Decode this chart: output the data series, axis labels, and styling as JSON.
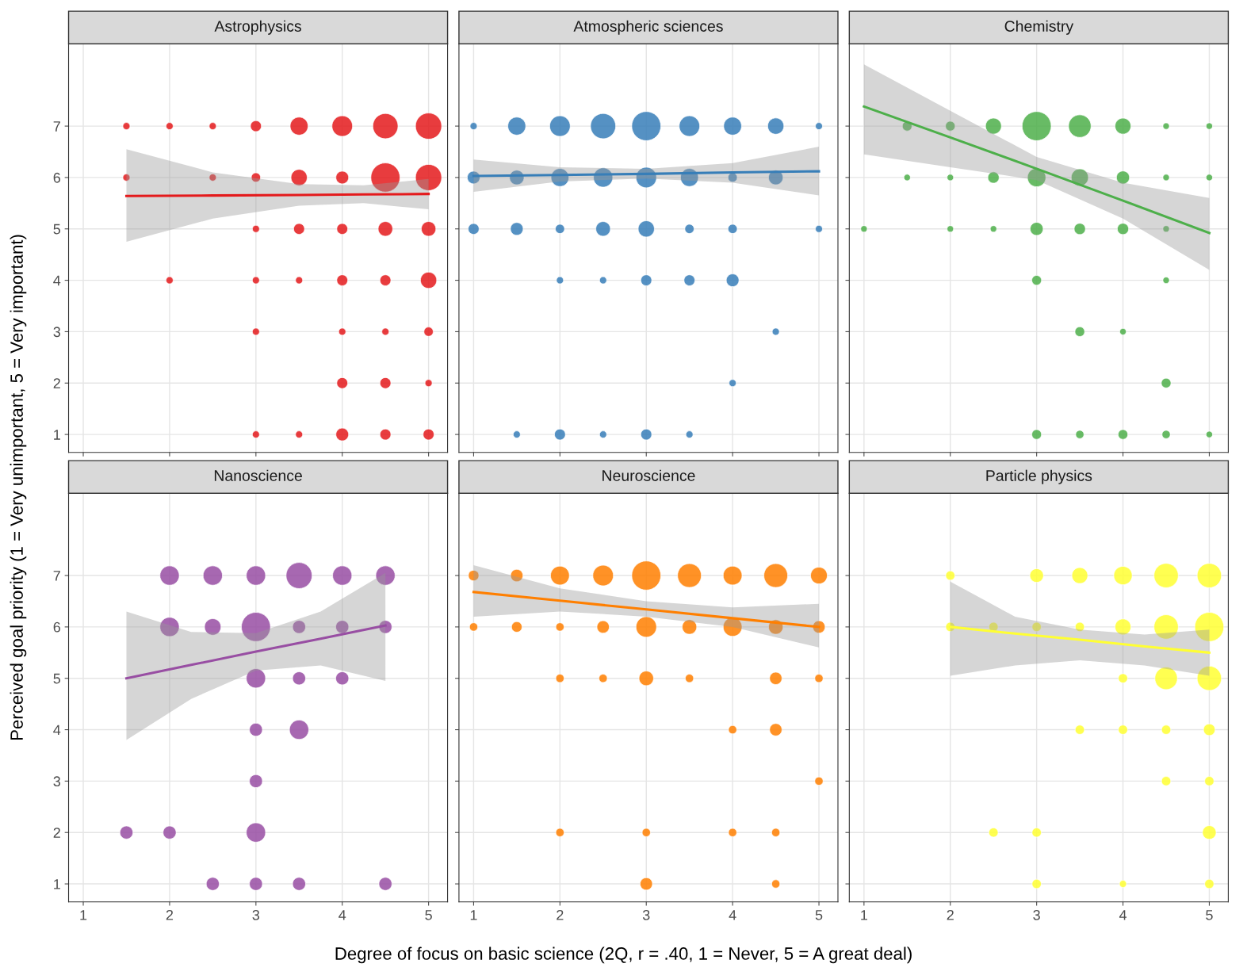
{
  "chart_data": [
    {
      "type": "bubble",
      "title": "Astrophysics",
      "ylabel": "Perceived goal priority (1 = Very unimportant, 5 = Very important)",
      "xlim": [
        0.83,
        5.22
      ],
      "ylim": [
        0.65,
        8.6
      ],
      "xticks": [
        1,
        2,
        3,
        4,
        5
      ],
      "yticks": [
        1,
        2,
        3,
        4,
        5,
        6,
        7
      ],
      "grid": true,
      "tick_labels": "y",
      "series": [
        {
          "type": "bubble",
          "color": "#e41a1c",
          "x": [
            1.5,
            2,
            2.5,
            3,
            3.5,
            4,
            4.5,
            5,
            1.5,
            2.5,
            3,
            3.5,
            4,
            4.5,
            5,
            3,
            3.5,
            4,
            4.5,
            5,
            2,
            3,
            3.5,
            4,
            4.5,
            5,
            3,
            4,
            4.5,
            5,
            4,
            4.5,
            5,
            3,
            3.5,
            4,
            4.5,
            5
          ],
          "values": [
            7,
            7,
            7,
            7,
            7,
            7,
            7,
            7,
            6,
            6,
            6,
            6,
            6,
            6,
            6,
            5,
            5,
            5,
            5,
            5,
            4,
            4,
            4,
            4,
            4,
            4,
            3,
            3,
            3,
            3,
            2,
            2,
            2,
            1,
            1,
            1,
            1,
            1
          ],
          "sizes": [
            0.06,
            0.06,
            0.06,
            0.14,
            0.38,
            0.5,
            0.75,
            0.81,
            0.06,
            0.06,
            0.1,
            0.31,
            0.19,
            1,
            0.81,
            0.06,
            0.14,
            0.14,
            0.25,
            0.25,
            0.06,
            0.06,
            0.06,
            0.14,
            0.14,
            0.31,
            0.06,
            0.06,
            0.06,
            0.1,
            0.14,
            0.14,
            0.06,
            0.06,
            0.06,
            0.19,
            0.14,
            0.14
          ]
        },
        {
          "type": "line",
          "color": "#e41a1c",
          "x": [
            1.5,
            2.5,
            3.5,
            4.25,
            5
          ],
          "values": [
            5.64,
            5.65,
            5.66,
            5.67,
            5.68
          ],
          "lower": [
            4.75,
            5.2,
            5.45,
            5.5,
            5.38
          ],
          "upper": [
            6.55,
            6.1,
            5.87,
            5.85,
            5.97
          ]
        }
      ]
    },
    {
      "type": "bubble",
      "title": "Atmospheric sciences",
      "xlim": [
        0.83,
        5.22
      ],
      "ylim": [
        0.65,
        8.6
      ],
      "xticks": [
        1,
        2,
        3,
        4,
        5
      ],
      "yticks": [
        1,
        2,
        3,
        4,
        5,
        6,
        7
      ],
      "grid": true,
      "tick_labels": false,
      "series": [
        {
          "type": "bubble",
          "color": "#377eb8",
          "x": [
            1,
            1.5,
            2,
            2.5,
            3,
            3.5,
            4,
            4.5,
            5,
            1,
            1.5,
            2,
            2.5,
            3,
            3.5,
            4,
            4.5,
            1,
            1.5,
            2,
            2.5,
            3,
            3.5,
            4,
            5,
            2,
            2.5,
            3,
            3.5,
            4,
            4.5,
            4,
            1.5,
            2,
            2.5,
            3,
            3.5
          ],
          "values": [
            7,
            7,
            7,
            7,
            7,
            7,
            7,
            7,
            7,
            6,
            6,
            6,
            6,
            6,
            6,
            6,
            6,
            5,
            5,
            5,
            5,
            5,
            5,
            5,
            5,
            4,
            4,
            4,
            4,
            4,
            3,
            2,
            1,
            1,
            1,
            1,
            1
          ],
          "sizes": [
            0.06,
            0.38,
            0.5,
            0.75,
            1,
            0.5,
            0.38,
            0.31,
            0.06,
            0.19,
            0.25,
            0.38,
            0.44,
            0.5,
            0.38,
            0.1,
            0.25,
            0.14,
            0.19,
            0.1,
            0.25,
            0.31,
            0.1,
            0.1,
            0.06,
            0.06,
            0.06,
            0.14,
            0.14,
            0.19,
            0.06,
            0.06,
            0.06,
            0.14,
            0.06,
            0.14,
            0.06
          ]
        },
        {
          "type": "line",
          "color": "#377eb8",
          "x": [
            1,
            2,
            3,
            4,
            5
          ],
          "values": [
            6.03,
            6.05,
            6.07,
            6.1,
            6.12
          ],
          "lower": [
            5.72,
            5.92,
            5.98,
            5.9,
            5.65
          ],
          "upper": [
            6.35,
            6.2,
            6.17,
            6.28,
            6.6
          ]
        }
      ]
    },
    {
      "type": "bubble",
      "title": "Chemistry",
      "xlim": [
        0.83,
        5.22
      ],
      "ylim": [
        0.65,
        8.6
      ],
      "xticks": [
        1,
        2,
        3,
        4,
        5
      ],
      "yticks": [
        1,
        2,
        3,
        4,
        5,
        6,
        7
      ],
      "grid": true,
      "tick_labels": false,
      "series": [
        {
          "type": "bubble",
          "color": "#4daf4a",
          "x": [
            1.5,
            2,
            2.5,
            3,
            3.5,
            4,
            4.5,
            5,
            1.5,
            2,
            2.5,
            3,
            3.5,
            4,
            4.5,
            5,
            1,
            2,
            2.5,
            3,
            3.5,
            4,
            4.5,
            3,
            4.5,
            3.5,
            4,
            4.5,
            3,
            3.5,
            4,
            4.5,
            5
          ],
          "values": [
            7,
            7,
            7,
            7,
            7,
            7,
            7,
            7,
            6,
            6,
            6,
            6,
            6,
            6,
            6,
            6,
            5,
            5,
            5,
            5,
            5,
            5,
            5,
            4,
            4,
            3,
            3,
            2,
            1,
            1,
            1,
            1,
            1
          ],
          "sizes": [
            0.11,
            0.11,
            0.3,
            1,
            0.6,
            0.3,
            0.05,
            0.05,
            0.05,
            0.05,
            0.15,
            0.4,
            0.35,
            0.2,
            0.05,
            0.05,
            0.05,
            0.05,
            0.05,
            0.2,
            0.15,
            0.15,
            0.05,
            0.11,
            0.05,
            0.11,
            0.05,
            0.11,
            0.11,
            0.08,
            0.11,
            0.08,
            0.05
          ]
        },
        {
          "type": "line",
          "color": "#4daf4a",
          "x": [
            1,
            2,
            3,
            4,
            5
          ],
          "values": [
            7.38,
            6.78,
            6.17,
            5.55,
            4.92
          ],
          "lower": [
            6.45,
            6.2,
            5.95,
            5.2,
            4.2
          ],
          "upper": [
            8.2,
            7.3,
            6.4,
            5.9,
            5.6
          ]
        }
      ]
    },
    {
      "type": "bubble",
      "title": "Nanoscience",
      "xlim": [
        0.83,
        5.22
      ],
      "ylim": [
        0.65,
        8.6
      ],
      "xticks": [
        1,
        2,
        3,
        4,
        5
      ],
      "yticks": [
        1,
        2,
        3,
        4,
        5,
        6,
        7
      ],
      "grid": true,
      "series": [
        {
          "type": "bubble",
          "color": "#984ea3",
          "x": [
            2,
            2.5,
            3,
            3.5,
            4,
            4.5,
            2,
            2.5,
            3,
            3.5,
            4,
            4.5,
            3,
            3.5,
            4,
            3,
            3.5,
            3,
            1.5,
            2,
            3,
            2.5,
            3,
            3.5,
            4.5
          ],
          "values": [
            7,
            7,
            7,
            7,
            7,
            7,
            6,
            6,
            6,
            6,
            6,
            6,
            5,
            5,
            5,
            4,
            4,
            3,
            2,
            2,
            2,
            1,
            1,
            1,
            1
          ],
          "sizes": [
            0.44,
            0.44,
            0.44,
            0.8,
            0.44,
            0.44,
            0.44,
            0.32,
            1,
            0.2,
            0.2,
            0.2,
            0.44,
            0.2,
            0.2,
            0.2,
            0.44,
            0.2,
            0.2,
            0.2,
            0.44,
            0.2,
            0.2,
            0.2,
            0.2
          ]
        },
        {
          "type": "line",
          "color": "#984ea3",
          "x": [
            1.5,
            2.25,
            3,
            3.75,
            4.5
          ],
          "values": [
            5.0,
            5.26,
            5.52,
            5.77,
            6.03
          ],
          "lower": [
            3.8,
            4.6,
            5.15,
            5.25,
            4.95
          ],
          "upper": [
            6.3,
            5.9,
            5.88,
            6.3,
            7.05
          ]
        }
      ]
    },
    {
      "type": "bubble",
      "title": "Neuroscience",
      "xlabel": "Degree of focus on basic science (2Q, r = .40, 1 = Never, 5 = A great deal)",
      "xlim": [
        0.83,
        5.22
      ],
      "ylim": [
        0.65,
        8.6
      ],
      "xticks": [
        1,
        2,
        3,
        4,
        5
      ],
      "yticks": [
        1,
        2,
        3,
        4,
        5,
        6,
        7
      ],
      "grid": true,
      "tick_labels": "x",
      "series": [
        {
          "type": "bubble",
          "color": "#ff7f00",
          "x": [
            1,
            1.5,
            2,
            2.5,
            3,
            3.5,
            4,
            4.5,
            5,
            1,
            1.5,
            2,
            2.5,
            3,
            3.5,
            4,
            4.5,
            5,
            2,
            2.5,
            3,
            3.5,
            4.5,
            5,
            4,
            4.5,
            5,
            2,
            3,
            4,
            4.5,
            3,
            4.5
          ],
          "values": [
            7,
            7,
            7,
            7,
            7,
            7,
            7,
            7,
            7,
            6,
            6,
            6,
            6,
            6,
            6,
            6,
            6,
            6,
            5,
            5,
            5,
            5,
            5,
            5,
            4,
            4,
            3,
            2,
            2,
            2,
            2,
            1,
            1
          ],
          "sizes": [
            0.13,
            0.18,
            0.42,
            0.5,
            1,
            0.67,
            0.42,
            0.67,
            0.33,
            0.08,
            0.13,
            0.08,
            0.18,
            0.5,
            0.25,
            0.42,
            0.25,
            0.18,
            0.08,
            0.08,
            0.25,
            0.08,
            0.18,
            0.08,
            0.08,
            0.18,
            0.08,
            0.08,
            0.08,
            0.08,
            0.08,
            0.18,
            0.08
          ]
        },
        {
          "type": "line",
          "color": "#ff7f00",
          "x": [
            1,
            2,
            3,
            4,
            5
          ],
          "values": [
            6.68,
            6.51,
            6.34,
            6.17,
            6.0
          ],
          "lower": [
            6.2,
            6.3,
            6.2,
            6.0,
            5.6
          ],
          "upper": [
            7.2,
            6.75,
            6.5,
            6.38,
            6.45
          ]
        }
      ]
    },
    {
      "type": "bubble",
      "title": "Particle physics",
      "xlim": [
        0.83,
        5.22
      ],
      "ylim": [
        0.65,
        8.6
      ],
      "xticks": [
        1,
        2,
        3,
        4,
        5
      ],
      "yticks": [
        1,
        2,
        3,
        4,
        5,
        6,
        7
      ],
      "grid": true,
      "tick_labels": "x",
      "series": [
        {
          "type": "bubble",
          "color": "#ffff33",
          "x": [
            2,
            3,
            3.5,
            4,
            4.5,
            5,
            2,
            2.5,
            3,
            3.5,
            4,
            4.5,
            5,
            4,
            4.5,
            5,
            3.5,
            4,
            4.5,
            5,
            4.5,
            5,
            2.5,
            3,
            5,
            3,
            4,
            5
          ],
          "values": [
            7,
            7,
            7,
            7,
            7,
            7,
            6,
            6,
            6,
            6,
            6,
            6,
            6,
            5,
            5,
            5,
            4,
            4,
            4,
            4,
            3,
            3,
            2,
            2,
            2,
            1,
            1,
            1
          ],
          "sizes": [
            0.1,
            0.22,
            0.3,
            0.4,
            0.7,
            0.7,
            0.1,
            0.1,
            0.1,
            0.1,
            0.3,
            0.7,
            1,
            0.1,
            0.6,
            0.7,
            0.1,
            0.1,
            0.1,
            0.16,
            0.1,
            0.1,
            0.1,
            0.1,
            0.22,
            0.1,
            0.06,
            0.1
          ]
        },
        {
          "type": "line",
          "color": "#ffff33",
          "x": [
            2,
            2.75,
            3.5,
            4.25,
            5
          ],
          "values": [
            6.0,
            5.87,
            5.75,
            5.62,
            5.5
          ],
          "lower": [
            5.05,
            5.25,
            5.35,
            5.25,
            5.05
          ],
          "upper": [
            6.88,
            6.2,
            5.95,
            5.85,
            5.95
          ]
        }
      ]
    }
  ]
}
